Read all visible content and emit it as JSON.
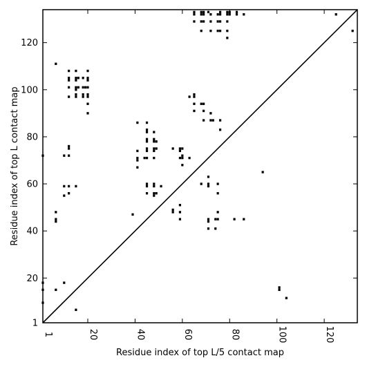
{
  "chart_data": {
    "type": "scatter",
    "xlabel": "Residue index of top L/5 contact map",
    "ylabel": "Residue index of top L contact map",
    "xlim": [
      1,
      134
    ],
    "ylim": [
      1,
      134
    ],
    "xticks": [
      1,
      20,
      40,
      60,
      80,
      100,
      120
    ],
    "yticks": [
      1,
      20,
      40,
      60,
      80,
      100,
      120
    ],
    "grid": false,
    "diagonal_line": true,
    "lower_triangle_points": [
      [
        1,
        9.5
      ],
      [
        1,
        15
      ],
      [
        1,
        18
      ],
      [
        6.5,
        15
      ],
      [
        10,
        18
      ],
      [
        15,
        6.5
      ],
      [
        94,
        65
      ],
      [
        101,
        15
      ],
      [
        101,
        16
      ],
      [
        104,
        11.5
      ],
      [
        125,
        132
      ],
      [
        132,
        125
      ]
    ],
    "upper_triangle_points": [
      [
        1,
        72
      ],
      [
        6.5,
        111
      ],
      [
        6.5,
        48
      ],
      [
        6.5,
        45
      ],
      [
        6.5,
        44
      ],
      [
        10,
        72
      ],
      [
        10,
        59
      ],
      [
        10,
        55
      ],
      [
        12,
        59
      ],
      [
        12,
        56
      ],
      [
        12,
        72
      ],
      [
        12,
        75
      ],
      [
        12,
        76
      ],
      [
        12,
        97
      ],
      [
        12,
        101
      ],
      [
        12,
        104
      ],
      [
        12,
        105
      ],
      [
        12,
        108
      ],
      [
        15,
        59
      ],
      [
        15,
        97
      ],
      [
        15,
        98
      ],
      [
        15,
        100
      ],
      [
        15,
        101
      ],
      [
        15,
        104
      ],
      [
        15,
        105
      ],
      [
        15,
        108
      ],
      [
        16,
        101
      ],
      [
        16,
        105
      ],
      [
        18,
        97
      ],
      [
        18,
        98
      ],
      [
        18,
        101
      ],
      [
        18,
        105
      ],
      [
        19,
        101
      ],
      [
        20,
        90
      ],
      [
        20,
        94
      ],
      [
        20,
        97
      ],
      [
        20,
        98
      ],
      [
        20,
        101
      ],
      [
        20,
        104
      ],
      [
        20,
        105
      ],
      [
        20,
        108
      ],
      [
        39,
        47
      ],
      [
        41,
        67
      ],
      [
        41,
        70
      ],
      [
        41,
        71
      ],
      [
        41,
        74
      ],
      [
        41,
        86
      ],
      [
        44,
        71
      ],
      [
        45,
        56
      ],
      [
        45,
        59
      ],
      [
        45,
        60
      ],
      [
        45,
        71
      ],
      [
        45,
        74
      ],
      [
        45,
        75
      ],
      [
        45,
        78
      ],
      [
        45,
        79
      ],
      [
        45,
        82
      ],
      [
        45,
        83
      ],
      [
        45,
        86
      ],
      [
        48,
        55
      ],
      [
        48,
        56
      ],
      [
        48,
        59
      ],
      [
        48,
        60
      ],
      [
        48,
        71
      ],
      [
        48,
        74
      ],
      [
        48,
        75
      ],
      [
        48,
        78
      ],
      [
        48,
        79
      ],
      [
        48,
        82
      ],
      [
        49,
        56
      ],
      [
        49,
        75
      ],
      [
        49,
        78
      ],
      [
        51,
        59
      ],
      [
        56,
        48
      ],
      [
        56,
        49
      ],
      [
        56,
        75
      ],
      [
        59,
        45
      ],
      [
        59,
        48
      ],
      [
        59,
        51
      ],
      [
        59,
        71
      ],
      [
        59,
        74
      ],
      [
        59,
        75
      ],
      [
        60,
        68
      ],
      [
        60,
        71
      ],
      [
        60,
        72
      ],
      [
        60,
        75
      ],
      [
        63,
        71
      ],
      [
        63,
        97
      ],
      [
        65,
        91
      ],
      [
        65,
        94
      ],
      [
        65,
        97
      ],
      [
        65,
        98
      ],
      [
        65,
        129
      ],
      [
        65,
        132
      ],
      [
        65,
        133
      ],
      [
        68,
        60
      ],
      [
        68,
        94
      ],
      [
        68,
        125
      ],
      [
        68,
        129
      ],
      [
        68,
        132
      ],
      [
        68,
        133
      ],
      [
        69,
        87
      ],
      [
        69,
        91
      ],
      [
        69,
        94
      ],
      [
        69,
        129
      ],
      [
        69,
        132
      ],
      [
        69,
        133
      ],
      [
        71,
        41
      ],
      [
        71,
        44
      ],
      [
        71,
        45
      ],
      [
        71,
        59
      ],
      [
        71,
        60
      ],
      [
        71,
        63
      ],
      [
        71,
        133
      ],
      [
        72,
        87
      ],
      [
        72,
        90
      ],
      [
        72,
        125
      ],
      [
        72,
        129
      ],
      [
        72,
        132
      ],
      [
        73,
        87
      ],
      [
        74,
        41
      ],
      [
        74,
        45
      ],
      [
        75,
        45
      ],
      [
        75,
        48
      ],
      [
        75,
        56
      ],
      [
        75,
        60
      ],
      [
        75,
        125
      ],
      [
        75,
        129
      ],
      [
        75,
        132
      ],
      [
        76,
        83
      ],
      [
        76,
        87
      ],
      [
        76,
        125
      ],
      [
        76,
        129
      ],
      [
        76,
        132
      ],
      [
        76,
        133
      ],
      [
        79,
        122
      ],
      [
        79,
        125
      ],
      [
        79,
        129
      ],
      [
        79,
        132
      ],
      [
        79,
        133
      ],
      [
        80,
        132
      ],
      [
        80,
        133
      ],
      [
        82,
        45
      ],
      [
        83,
        132
      ],
      [
        83,
        133
      ],
      [
        86,
        45
      ],
      [
        86,
        132
      ]
    ]
  }
}
